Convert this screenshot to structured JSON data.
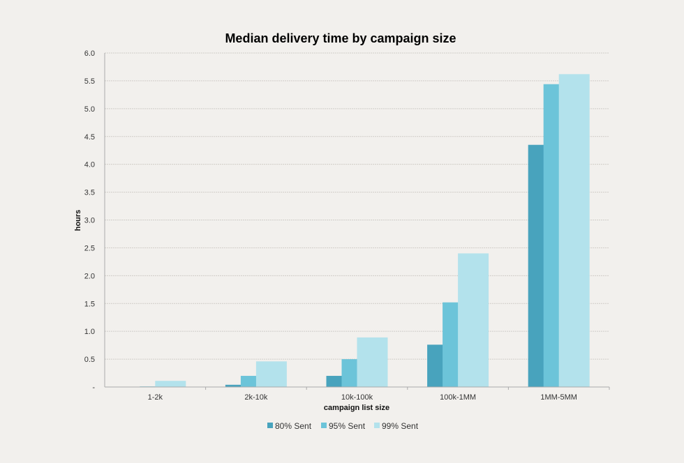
{
  "chart_data": {
    "type": "bar",
    "title": "Median delivery time by campaign size",
    "xlabel": "campaign list size",
    "ylabel": "hours",
    "categories": [
      "1-2k",
      "2k-10k",
      "10k-100k",
      "100k-1MM",
      "1MM-5MM"
    ],
    "series": [
      {
        "name": "80% Sent",
        "color": "#48a3bd",
        "values": [
          0.0,
          0.04,
          0.2,
          0.76,
          4.35
        ]
      },
      {
        "name": "95% Sent",
        "color": "#6cc4d9",
        "values": [
          0.01,
          0.2,
          0.5,
          1.52,
          5.44
        ]
      },
      {
        "name": "99% Sent",
        "color": "#b3e2ec",
        "values": [
          0.11,
          0.46,
          0.89,
          2.4,
          5.62
        ]
      }
    ],
    "ylim": [
      0,
      6
    ],
    "yticks": [
      "-",
      "0.5",
      "1.0",
      "1.5",
      "2.0",
      "2.5",
      "3.0",
      "3.5",
      "4.0",
      "4.5",
      "5.0",
      "5.5",
      "6.0"
    ],
    "grid": true,
    "legend": "bottom"
  }
}
